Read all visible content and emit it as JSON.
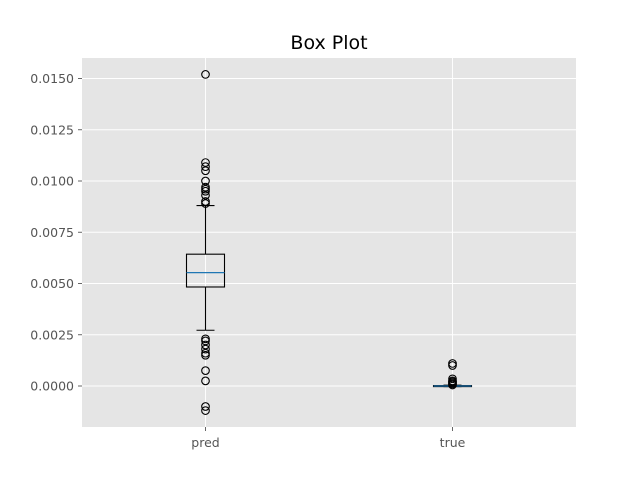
{
  "chart_data": {
    "type": "box",
    "title": "Box Plot",
    "xlabel": "",
    "ylabel": "",
    "ylim": [
      -0.002,
      0.016
    ],
    "yticks": [
      0.0,
      0.0025,
      0.005,
      0.0075,
      0.01,
      0.0125,
      0.015
    ],
    "ytick_labels": [
      "0.0000",
      "0.0025",
      "0.0050",
      "0.0075",
      "0.0100",
      "0.0125",
      "0.0150"
    ],
    "grid": true,
    "style": "ggplot",
    "colors": {
      "panel_background": "#e5e5e5",
      "grid": "#ffffff",
      "box": "#000000",
      "median": "#1f77b4",
      "flier": "#000000"
    },
    "categories": [
      "pred",
      "true"
    ],
    "boxes": [
      {
        "name": "pred",
        "whisker_low": 0.00272,
        "q1": 0.00483,
        "median": 0.00553,
        "q3": 0.00643,
        "whisker_high": 0.0088,
        "outliers": [
          0.0152,
          0.0109,
          0.0107,
          0.0105,
          0.01,
          0.0097,
          0.0096,
          0.0095,
          0.0093,
          0.009,
          0.0089,
          0.0023,
          0.0022,
          0.002,
          0.0018,
          0.0016,
          0.0015,
          0.00075,
          0.00025,
          -0.001,
          -0.0012
        ]
      },
      {
        "name": "true",
        "whisker_low": -3e-05,
        "q1": -1e-05,
        "median": 0.0,
        "q3": 2e-05,
        "whisker_high": 4e-05,
        "outliers": [
          0.0011,
          0.001,
          0.00035,
          0.00025,
          0.0002,
          0.00015,
          0.0001,
          5e-05
        ]
      }
    ]
  }
}
